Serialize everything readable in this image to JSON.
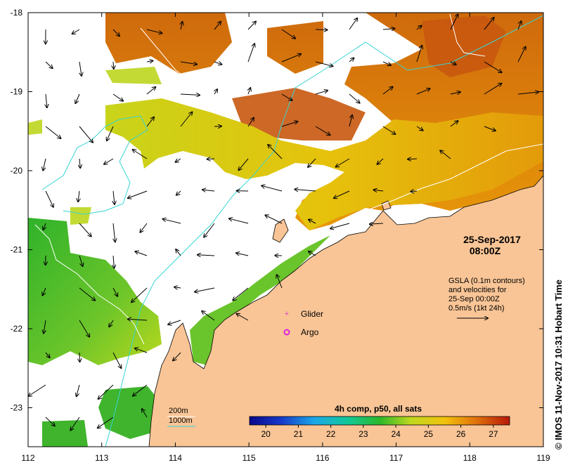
{
  "map": {
    "date": "25-Sep-2017",
    "time": "08:00Z",
    "gsla_lines": [
      "GSLA (0.1m contours)",
      "and velocities for",
      "25-Sep 00:00Z",
      "0.5m/s (1kt 24h)"
    ],
    "legend": {
      "glider": "Glider",
      "argo": "Argo"
    },
    "bathy": {
      "c200": "200m",
      "c1000": "1000m"
    },
    "colorbar": {
      "title": "4h comp, p50, all sats",
      "labels": [
        "20",
        "21",
        "22",
        "23",
        "24",
        "25",
        "26",
        "27"
      ],
      "range": [
        19.5,
        27.5
      ]
    },
    "x_ticks": [
      "112",
      "113",
      "114",
      "115",
      "116",
      "117",
      "118",
      "119"
    ],
    "y_ticks": [
      "-18",
      "-19",
      "-20",
      "-21",
      "-22",
      "-23"
    ],
    "credit": "© IMOS 11-Nov-2017 10:31 Hobart Time",
    "colors": {
      "land": "#f9c596",
      "contour_200m": "#ffffff",
      "contour_1000m": "#38d4d4",
      "glider": "#d63bd6",
      "argo": "#e020e0"
    }
  }
}
